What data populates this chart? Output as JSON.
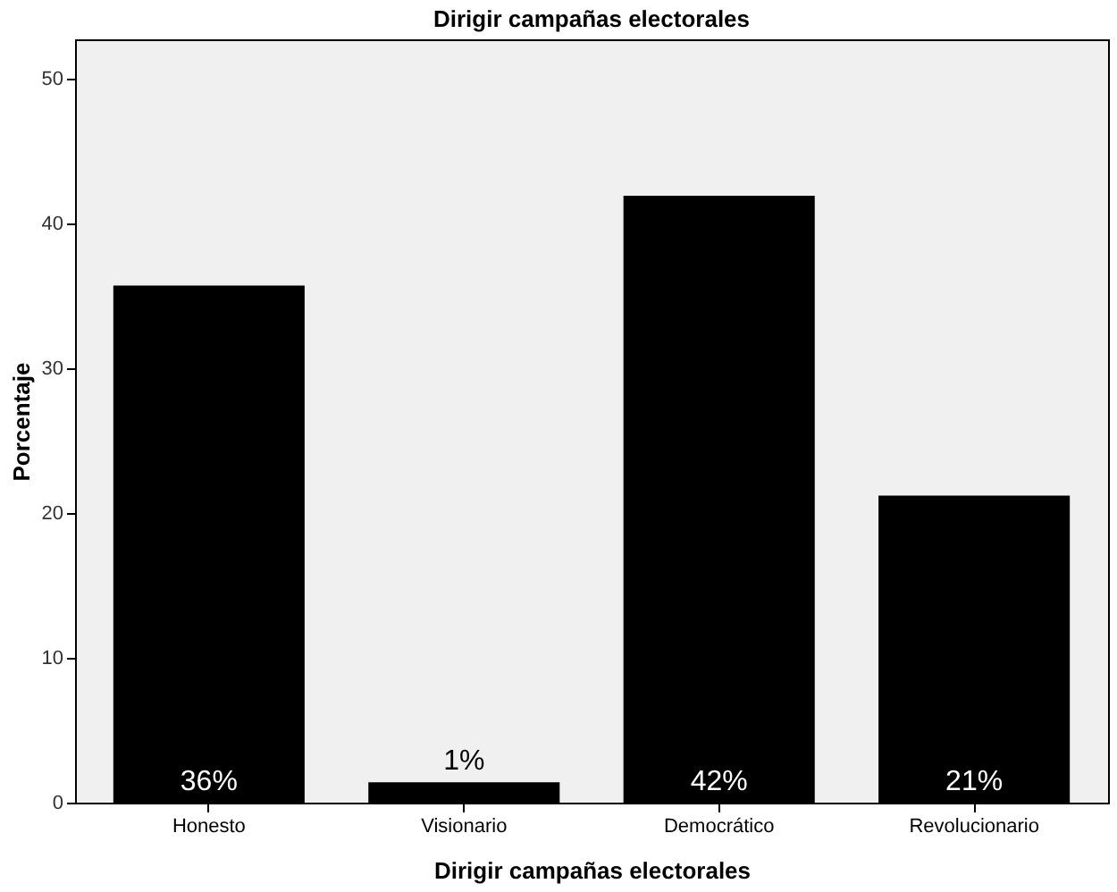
{
  "chart_data": {
    "type": "bar",
    "title": "Dirigir campañas electorales",
    "xlabel": "Dirigir campañas electorales",
    "ylabel": "Porcentaje",
    "categories": [
      "Honesto",
      "Visionario",
      "Democrático",
      "Revolucionario"
    ],
    "values": [
      35.7,
      1.4,
      41.9,
      21.2
    ],
    "color": "#000000",
    "value_labels": [
      "36%",
      "1%",
      "42%",
      "21%"
    ],
    "ylim": [
      0,
      52.7
    ],
    "yticks": [
      0,
      10,
      20,
      30,
      40,
      50
    ],
    "grid": false
  }
}
